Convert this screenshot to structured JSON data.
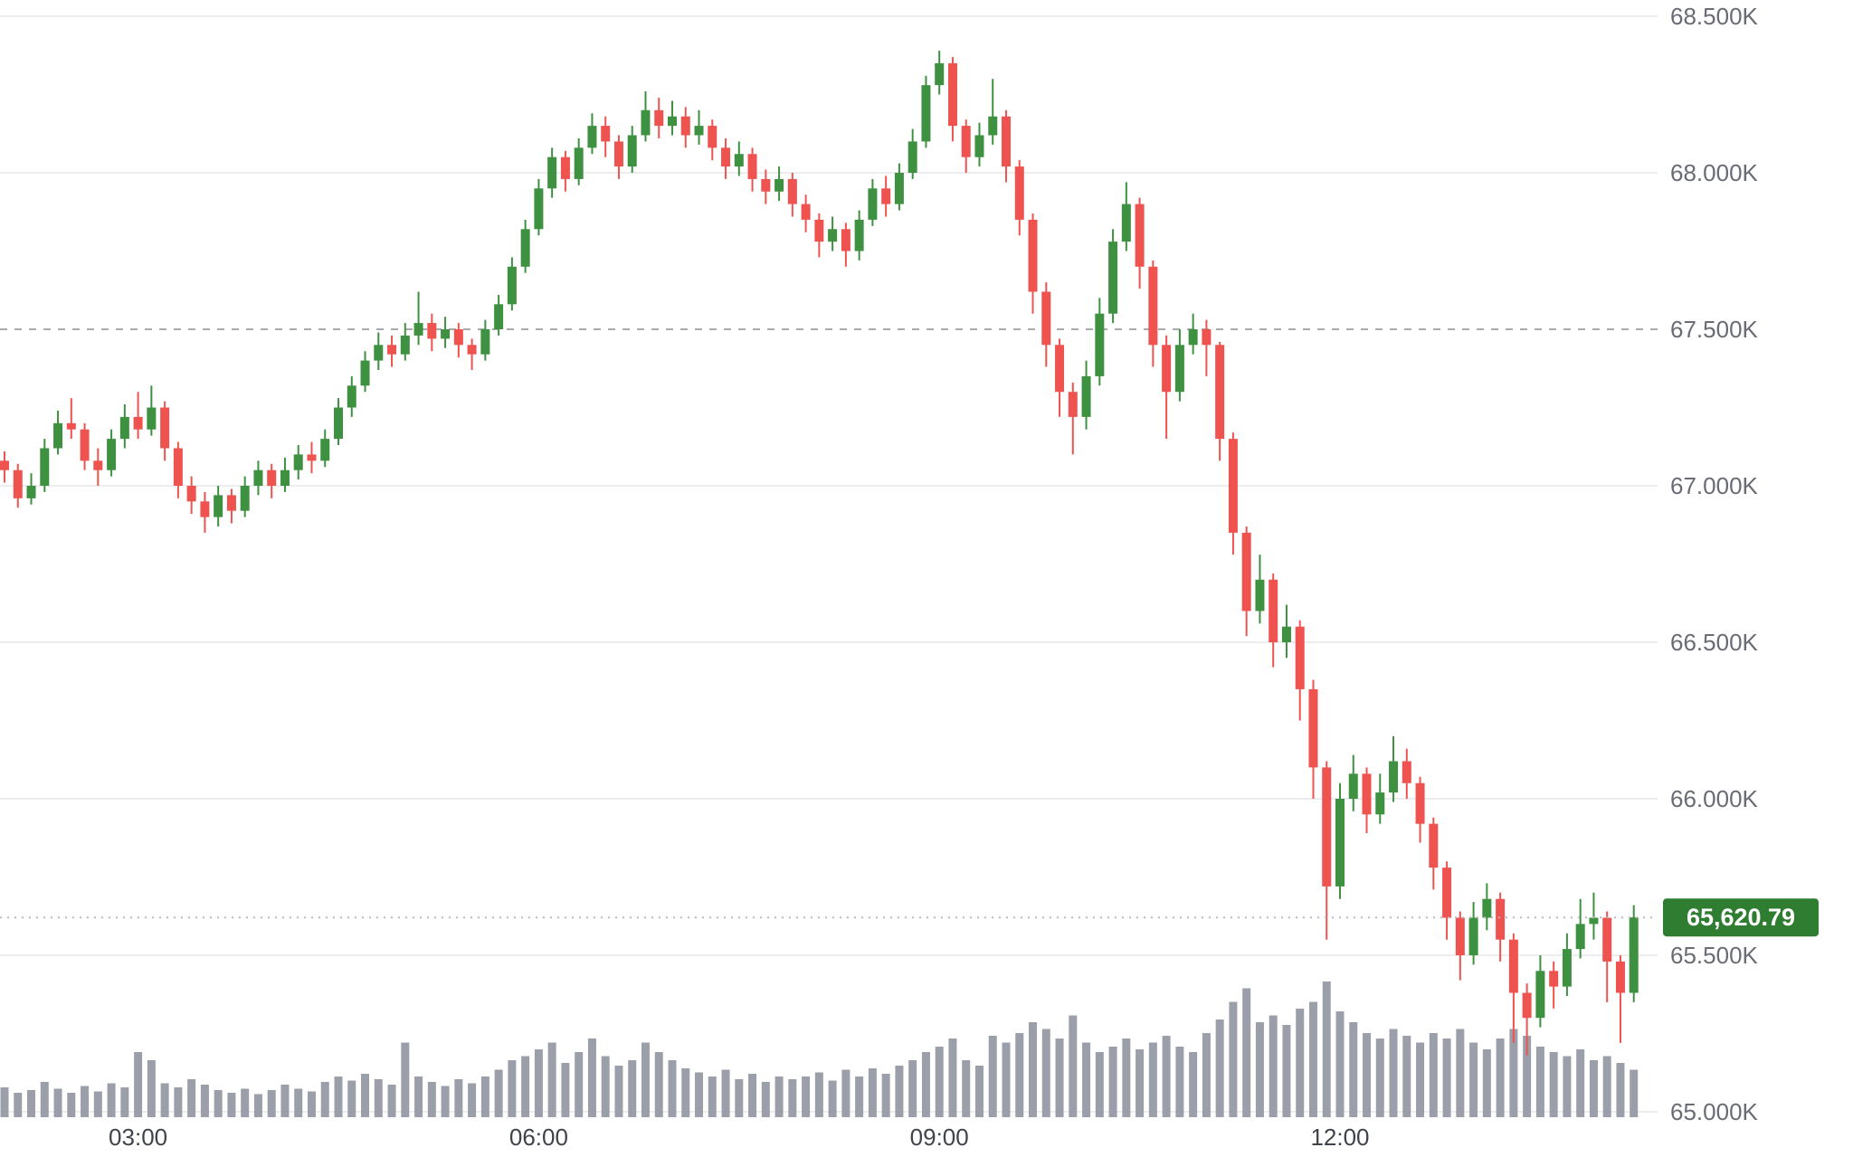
{
  "axis": {
    "price_ticks": [
      {
        "label": "68.500K",
        "value": 68.5
      },
      {
        "label": "68.000K",
        "value": 68.0
      },
      {
        "label": "67.500K",
        "value": 67.5
      },
      {
        "label": "67.000K",
        "value": 67.0
      },
      {
        "label": "66.500K",
        "value": 66.5
      },
      {
        "label": "66.000K",
        "value": 66.0
      },
      {
        "label": "65.500K",
        "value": 65.5
      },
      {
        "label": "65.000K",
        "value": 65.0
      }
    ],
    "time_ticks": [
      {
        "label": "03:00",
        "candle_index": 10
      },
      {
        "label": "06:00",
        "candle_index": 40
      },
      {
        "label": "09:00",
        "candle_index": 70
      },
      {
        "label": "12:00",
        "candle_index": 100
      }
    ]
  },
  "current_price": {
    "label": "65,620.79",
    "value": 65620.79,
    "value_k": 65.62079
  },
  "chart_data": {
    "type": "candlestick",
    "title": "",
    "unit": "K_USD",
    "ohlc_format": [
      "open",
      "high",
      "low",
      "close"
    ],
    "timeframe_minutes": 6,
    "ylim": [
      65.0,
      68.5
    ],
    "grid": {
      "solid_levels": [
        68.5,
        68.0,
        67.0,
        66.5,
        66.0,
        65.5,
        65.0
      ],
      "dashed_level": 67.5
    },
    "legend": "none",
    "colors": {
      "up": "#3e9141",
      "down": "#ef5350",
      "volume": "#9095a0",
      "badge_bg": "#2f7d31",
      "badge_text": "#ffffff",
      "grid_solid": "#ededef",
      "grid_dashed": "#a7aab0",
      "price_line_dotted": "#b7bac0",
      "price_text": "#696c74",
      "time_text": "#3f434a",
      "background": "#ffffff"
    },
    "candles": [
      [
        67.08,
        67.11,
        67.01,
        67.05
      ],
      [
        67.05,
        67.07,
        66.93,
        66.96
      ],
      [
        66.96,
        67.04,
        66.94,
        67.0
      ],
      [
        67.0,
        67.15,
        66.98,
        67.12
      ],
      [
        67.12,
        67.24,
        67.1,
        67.2
      ],
      [
        67.2,
        67.28,
        67.15,
        67.18
      ],
      [
        67.18,
        67.2,
        67.05,
        67.08
      ],
      [
        67.08,
        67.12,
        67.0,
        67.05
      ],
      [
        67.05,
        67.18,
        67.03,
        67.15
      ],
      [
        67.15,
        67.26,
        67.12,
        67.22
      ],
      [
        67.22,
        67.3,
        67.15,
        67.18
      ],
      [
        67.18,
        67.32,
        67.16,
        67.25
      ],
      [
        67.25,
        67.27,
        67.08,
        67.12
      ],
      [
        67.12,
        67.14,
        66.96,
        67.0
      ],
      [
        67.0,
        67.03,
        66.91,
        66.95
      ],
      [
        66.95,
        66.98,
        66.85,
        66.9
      ],
      [
        66.9,
        67.0,
        66.87,
        66.97
      ],
      [
        66.97,
        66.99,
        66.88,
        66.92
      ],
      [
        66.92,
        67.03,
        66.9,
        67.0
      ],
      [
        67.0,
        67.08,
        66.97,
        67.05
      ],
      [
        67.05,
        67.07,
        66.96,
        67.0
      ],
      [
        67.0,
        67.09,
        66.98,
        67.05
      ],
      [
        67.05,
        67.13,
        67.02,
        67.1
      ],
      [
        67.1,
        67.14,
        67.04,
        67.08
      ],
      [
        67.08,
        67.18,
        67.06,
        67.15
      ],
      [
        67.15,
        67.28,
        67.13,
        67.25
      ],
      [
        67.25,
        67.35,
        67.22,
        67.32
      ],
      [
        67.32,
        67.43,
        67.3,
        67.4
      ],
      [
        67.4,
        67.49,
        67.37,
        67.45
      ],
      [
        67.45,
        67.48,
        67.38,
        67.42
      ],
      [
        67.42,
        67.52,
        67.4,
        67.48
      ],
      [
        67.48,
        67.62,
        67.45,
        67.52
      ],
      [
        67.52,
        67.55,
        67.43,
        67.47
      ],
      [
        67.47,
        67.54,
        67.44,
        67.5
      ],
      [
        67.5,
        67.52,
        67.41,
        67.45
      ],
      [
        67.45,
        67.47,
        67.37,
        67.42
      ],
      [
        67.42,
        67.53,
        67.4,
        67.5
      ],
      [
        67.5,
        67.61,
        67.48,
        67.58
      ],
      [
        67.58,
        67.73,
        67.56,
        67.7
      ],
      [
        67.7,
        67.85,
        67.68,
        67.82
      ],
      [
        67.82,
        67.98,
        67.8,
        67.95
      ],
      [
        67.95,
        68.08,
        67.92,
        68.05
      ],
      [
        68.05,
        68.07,
        67.94,
        67.98
      ],
      [
        67.98,
        68.11,
        67.96,
        68.08
      ],
      [
        68.08,
        68.19,
        68.06,
        68.15
      ],
      [
        68.15,
        68.18,
        68.05,
        68.1
      ],
      [
        68.1,
        68.12,
        67.98,
        68.02
      ],
      [
        68.02,
        68.15,
        68.0,
        68.12
      ],
      [
        68.12,
        68.26,
        68.1,
        68.2
      ],
      [
        68.2,
        68.24,
        68.11,
        68.15
      ],
      [
        68.15,
        68.23,
        68.12,
        68.18
      ],
      [
        68.18,
        68.21,
        68.08,
        68.12
      ],
      [
        68.12,
        68.2,
        68.09,
        68.15
      ],
      [
        68.15,
        68.17,
        68.04,
        68.08
      ],
      [
        68.08,
        68.11,
        67.98,
        68.02
      ],
      [
        68.02,
        68.1,
        67.99,
        68.06
      ],
      [
        68.06,
        68.08,
        67.94,
        67.98
      ],
      [
        67.98,
        68.01,
        67.9,
        67.94
      ],
      [
        67.94,
        68.02,
        67.91,
        67.98
      ],
      [
        67.98,
        68.0,
        67.86,
        67.9
      ],
      [
        67.9,
        67.93,
        67.81,
        67.85
      ],
      [
        67.85,
        67.87,
        67.73,
        67.78
      ],
      [
        67.78,
        67.86,
        67.75,
        67.82
      ],
      [
        67.82,
        67.84,
        67.7,
        67.75
      ],
      [
        67.75,
        67.88,
        67.72,
        67.85
      ],
      [
        67.85,
        67.98,
        67.83,
        67.95
      ],
      [
        67.95,
        67.99,
        67.86,
        67.9
      ],
      [
        67.9,
        68.03,
        67.88,
        68.0
      ],
      [
        68.0,
        68.14,
        67.98,
        68.1
      ],
      [
        68.1,
        68.31,
        68.08,
        68.28
      ],
      [
        68.28,
        68.39,
        68.25,
        68.35
      ],
      [
        68.35,
        68.37,
        68.1,
        68.15
      ],
      [
        68.15,
        68.17,
        68.0,
        68.05
      ],
      [
        68.05,
        68.16,
        68.02,
        68.12
      ],
      [
        68.12,
        68.3,
        68.09,
        68.18
      ],
      [
        68.18,
        68.2,
        67.97,
        68.02
      ],
      [
        68.02,
        68.04,
        67.8,
        67.85
      ],
      [
        67.85,
        67.87,
        67.55,
        67.62
      ],
      [
        67.62,
        67.65,
        67.38,
        67.45
      ],
      [
        67.45,
        67.47,
        67.22,
        67.3
      ],
      [
        67.3,
        67.33,
        67.1,
        67.22
      ],
      [
        67.22,
        67.4,
        67.18,
        67.35
      ],
      [
        67.35,
        67.6,
        67.32,
        67.55
      ],
      [
        67.55,
        67.82,
        67.52,
        67.78
      ],
      [
        67.78,
        67.97,
        67.75,
        67.9
      ],
      [
        67.9,
        67.92,
        67.63,
        67.7
      ],
      [
        67.7,
        67.72,
        67.38,
        67.45
      ],
      [
        67.45,
        67.48,
        67.15,
        67.3
      ],
      [
        67.3,
        67.5,
        67.27,
        67.45
      ],
      [
        67.45,
        67.55,
        67.42,
        67.5
      ],
      [
        67.5,
        67.53,
        67.35,
        67.45
      ],
      [
        67.45,
        67.46,
        67.08,
        67.15
      ],
      [
        67.15,
        67.17,
        66.78,
        66.85
      ],
      [
        66.85,
        66.87,
        66.52,
        66.6
      ],
      [
        66.6,
        66.78,
        66.56,
        66.7
      ],
      [
        66.7,
        66.72,
        66.42,
        66.5
      ],
      [
        66.5,
        66.62,
        66.45,
        66.55
      ],
      [
        66.55,
        66.57,
        66.25,
        66.35
      ],
      [
        66.35,
        66.38,
        66.0,
        66.1
      ],
      [
        66.1,
        66.12,
        65.55,
        65.72
      ],
      [
        65.72,
        66.05,
        65.68,
        66.0
      ],
      [
        66.0,
        66.14,
        65.96,
        66.08
      ],
      [
        66.08,
        66.1,
        65.89,
        65.95
      ],
      [
        65.95,
        66.08,
        65.92,
        66.02
      ],
      [
        66.02,
        66.2,
        65.99,
        66.12
      ],
      [
        66.12,
        66.16,
        66.0,
        66.05
      ],
      [
        66.05,
        66.07,
        65.86,
        65.92
      ],
      [
        65.92,
        65.94,
        65.71,
        65.78
      ],
      [
        65.78,
        65.8,
        65.55,
        65.62
      ],
      [
        65.62,
        65.64,
        65.42,
        65.5
      ],
      [
        65.5,
        65.67,
        65.47,
        65.62
      ],
      [
        65.62,
        65.73,
        65.58,
        65.68
      ],
      [
        65.68,
        65.7,
        65.48,
        65.55
      ],
      [
        65.55,
        65.57,
        65.22,
        65.38
      ],
      [
        65.38,
        65.41,
        65.18,
        65.3
      ],
      [
        65.3,
        65.5,
        65.27,
        65.45
      ],
      [
        65.45,
        65.48,
        65.33,
        65.4
      ],
      [
        65.4,
        65.57,
        65.37,
        65.52
      ],
      [
        65.52,
        65.68,
        65.49,
        65.6
      ],
      [
        65.6,
        65.7,
        65.55,
        65.62
      ],
      [
        65.62,
        65.64,
        65.35,
        65.48
      ],
      [
        65.48,
        65.5,
        65.22,
        65.38
      ],
      [
        65.38,
        65.66,
        65.35,
        65.621
      ]
    ],
    "volume_relative": [
      0.22,
      0.18,
      0.2,
      0.26,
      0.21,
      0.18,
      0.23,
      0.19,
      0.25,
      0.22,
      0.48,
      0.42,
      0.25,
      0.22,
      0.28,
      0.24,
      0.2,
      0.18,
      0.21,
      0.17,
      0.2,
      0.24,
      0.21,
      0.19,
      0.26,
      0.3,
      0.27,
      0.32,
      0.28,
      0.24,
      0.55,
      0.3,
      0.26,
      0.23,
      0.28,
      0.25,
      0.3,
      0.35,
      0.42,
      0.45,
      0.5,
      0.55,
      0.4,
      0.48,
      0.58,
      0.45,
      0.38,
      0.42,
      0.55,
      0.48,
      0.42,
      0.36,
      0.33,
      0.3,
      0.35,
      0.28,
      0.32,
      0.26,
      0.3,
      0.28,
      0.3,
      0.33,
      0.27,
      0.35,
      0.3,
      0.36,
      0.32,
      0.38,
      0.42,
      0.48,
      0.52,
      0.58,
      0.42,
      0.38,
      0.6,
      0.55,
      0.62,
      0.7,
      0.65,
      0.58,
      0.75,
      0.55,
      0.48,
      0.52,
      0.58,
      0.5,
      0.55,
      0.6,
      0.52,
      0.48,
      0.62,
      0.72,
      0.85,
      0.95,
      0.7,
      0.75,
      0.68,
      0.8,
      0.85,
      1.0,
      0.78,
      0.7,
      0.62,
      0.58,
      0.65,
      0.6,
      0.55,
      0.62,
      0.58,
      0.65,
      0.55,
      0.5,
      0.58,
      0.65,
      0.6,
      0.52,
      0.48,
      0.45,
      0.5,
      0.42,
      0.45,
      0.4,
      0.35
    ]
  }
}
